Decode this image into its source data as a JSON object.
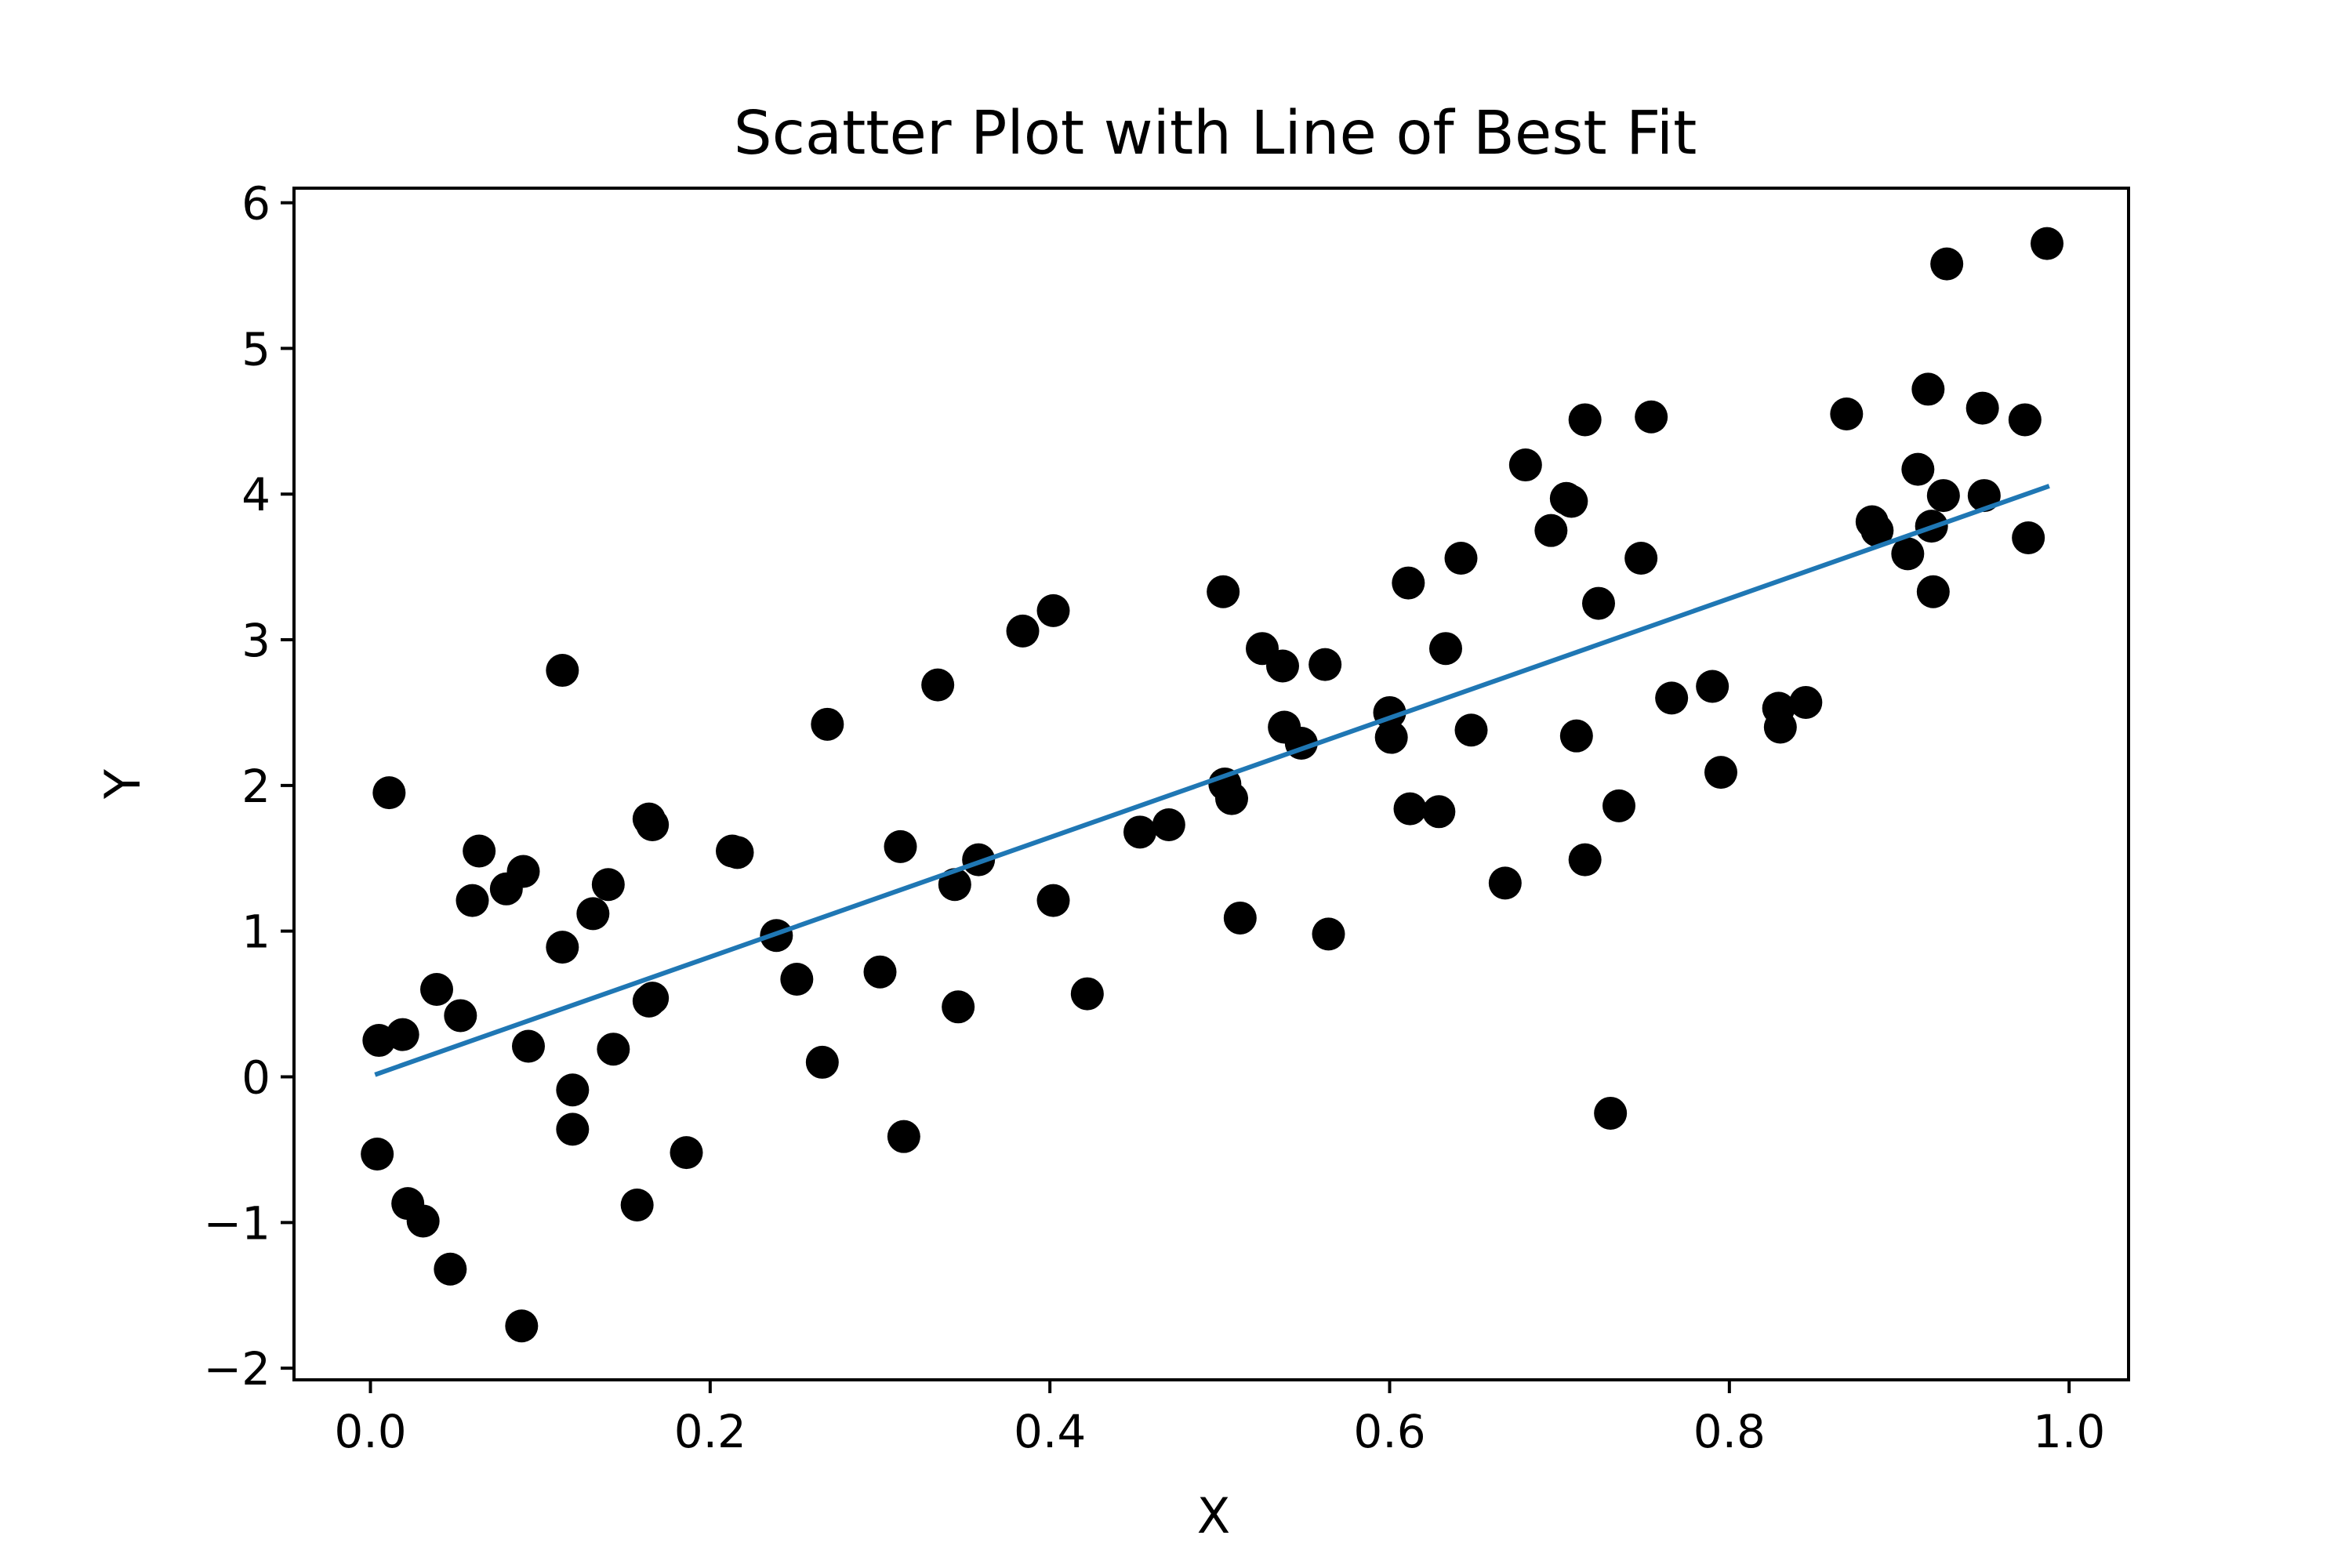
{
  "chart_data": {
    "type": "scatter",
    "title": "Scatter Plot with Line of Best Fit",
    "xlabel": "X",
    "ylabel": "Y",
    "xlim": [
      -0.045,
      1.035
    ],
    "ylim": [
      -2.08,
      6.1
    ],
    "xticks": [
      {
        "value": 0.0,
        "label": "0.0"
      },
      {
        "value": 0.2,
        "label": "0.2"
      },
      {
        "value": 0.4,
        "label": "0.4"
      },
      {
        "value": 0.6,
        "label": "0.6"
      },
      {
        "value": 0.8,
        "label": "0.8"
      },
      {
        "value": 1.0,
        "label": "1.0"
      }
    ],
    "yticks": [
      {
        "value": -2,
        "label": "−2"
      },
      {
        "value": -1,
        "label": "−1"
      },
      {
        "value": 0,
        "label": "0"
      },
      {
        "value": 1,
        "label": "1"
      },
      {
        "value": 2,
        "label": "2"
      },
      {
        "value": 3,
        "label": "3"
      },
      {
        "value": 4,
        "label": "4"
      },
      {
        "value": 5,
        "label": "5"
      },
      {
        "value": 6,
        "label": "6"
      }
    ],
    "grid": false,
    "series": [
      {
        "kind": "scatter",
        "color": "#000000",
        "points": [
          [
            0.005,
            0.25
          ],
          [
            0.004,
            -0.53
          ],
          [
            0.011,
            1.95
          ],
          [
            0.019,
            0.29
          ],
          [
            0.022,
            -0.87
          ],
          [
            0.031,
            -0.99
          ],
          [
            0.039,
            0.6
          ],
          [
            0.047,
            -1.32
          ],
          [
            0.053,
            0.42
          ],
          [
            0.06,
            1.21
          ],
          [
            0.064,
            1.55
          ],
          [
            0.08,
            1.29
          ],
          [
            0.09,
            1.41
          ],
          [
            0.089,
            -1.71
          ],
          [
            0.093,
            0.21
          ],
          [
            0.113,
            2.79
          ],
          [
            0.113,
            0.89
          ],
          [
            0.119,
            -0.09
          ],
          [
            0.119,
            -0.36
          ],
          [
            0.131,
            1.12
          ],
          [
            0.14,
            1.32
          ],
          [
            0.143,
            0.19
          ],
          [
            0.157,
            -0.88
          ],
          [
            0.164,
            1.77
          ],
          [
            0.166,
            1.73
          ],
          [
            0.166,
            0.54
          ],
          [
            0.164,
            0.52
          ],
          [
            0.186,
            -0.52
          ],
          [
            0.213,
            1.55
          ],
          [
            0.216,
            1.54
          ],
          [
            0.239,
            0.97
          ],
          [
            0.251,
            0.67
          ],
          [
            0.266,
            0.1
          ],
          [
            0.269,
            2.42
          ],
          [
            0.3,
            0.72
          ],
          [
            0.312,
            1.58
          ],
          [
            0.314,
            -0.41
          ],
          [
            0.334,
            2.69
          ],
          [
            0.344,
            1.32
          ],
          [
            0.346,
            0.48
          ],
          [
            0.358,
            1.49
          ],
          [
            0.384,
            3.06
          ],
          [
            0.402,
            3.2
          ],
          [
            0.402,
            1.21
          ],
          [
            0.422,
            0.57
          ],
          [
            0.453,
            1.68
          ],
          [
            0.47,
            1.73
          ],
          [
            0.502,
            3.33
          ],
          [
            0.503,
            2.01
          ],
          [
            0.507,
            1.91
          ],
          [
            0.512,
            1.09
          ],
          [
            0.525,
            2.94
          ],
          [
            0.537,
            2.82
          ],
          [
            0.538,
            2.4
          ],
          [
            0.548,
            2.29
          ],
          [
            0.562,
            2.83
          ],
          [
            0.564,
            0.98
          ],
          [
            0.6,
            2.5
          ],
          [
            0.601,
            2.33
          ],
          [
            0.611,
            3.39
          ],
          [
            0.612,
            1.84
          ],
          [
            0.629,
            1.82
          ],
          [
            0.633,
            2.94
          ],
          [
            0.642,
            3.56
          ],
          [
            0.648,
            2.38
          ],
          [
            0.668,
            1.33
          ],
          [
            0.68,
            4.2
          ],
          [
            0.695,
            3.75
          ],
          [
            0.704,
            3.97
          ],
          [
            0.707,
            3.95
          ],
          [
            0.71,
            2.34
          ],
          [
            0.715,
            4.51
          ],
          [
            0.715,
            1.49
          ],
          [
            0.723,
            3.25
          ],
          [
            0.73,
            -0.25
          ],
          [
            0.735,
            1.86
          ],
          [
            0.748,
            3.56
          ],
          [
            0.754,
            4.53
          ],
          [
            0.766,
            2.6
          ],
          [
            0.79,
            2.68
          ],
          [
            0.795,
            2.09
          ],
          [
            0.829,
            2.53
          ],
          [
            0.83,
            2.4
          ],
          [
            0.845,
            2.57
          ],
          [
            0.869,
            4.55
          ],
          [
            0.884,
            3.81
          ],
          [
            0.887,
            3.75
          ],
          [
            0.905,
            3.59
          ],
          [
            0.911,
            4.17
          ],
          [
            0.917,
            4.72
          ],
          [
            0.919,
            3.78
          ],
          [
            0.92,
            3.33
          ],
          [
            0.926,
            3.99
          ],
          [
            0.928,
            5.58
          ],
          [
            0.949,
            4.59
          ],
          [
            0.95,
            3.99
          ],
          [
            0.974,
            4.51
          ],
          [
            0.976,
            3.7
          ],
          [
            0.987,
            5.72
          ]
        ]
      },
      {
        "kind": "line",
        "color": "#1f77b4",
        "points": [
          [
            0.004,
            0.02
          ],
          [
            0.987,
            4.05
          ]
        ]
      }
    ]
  }
}
